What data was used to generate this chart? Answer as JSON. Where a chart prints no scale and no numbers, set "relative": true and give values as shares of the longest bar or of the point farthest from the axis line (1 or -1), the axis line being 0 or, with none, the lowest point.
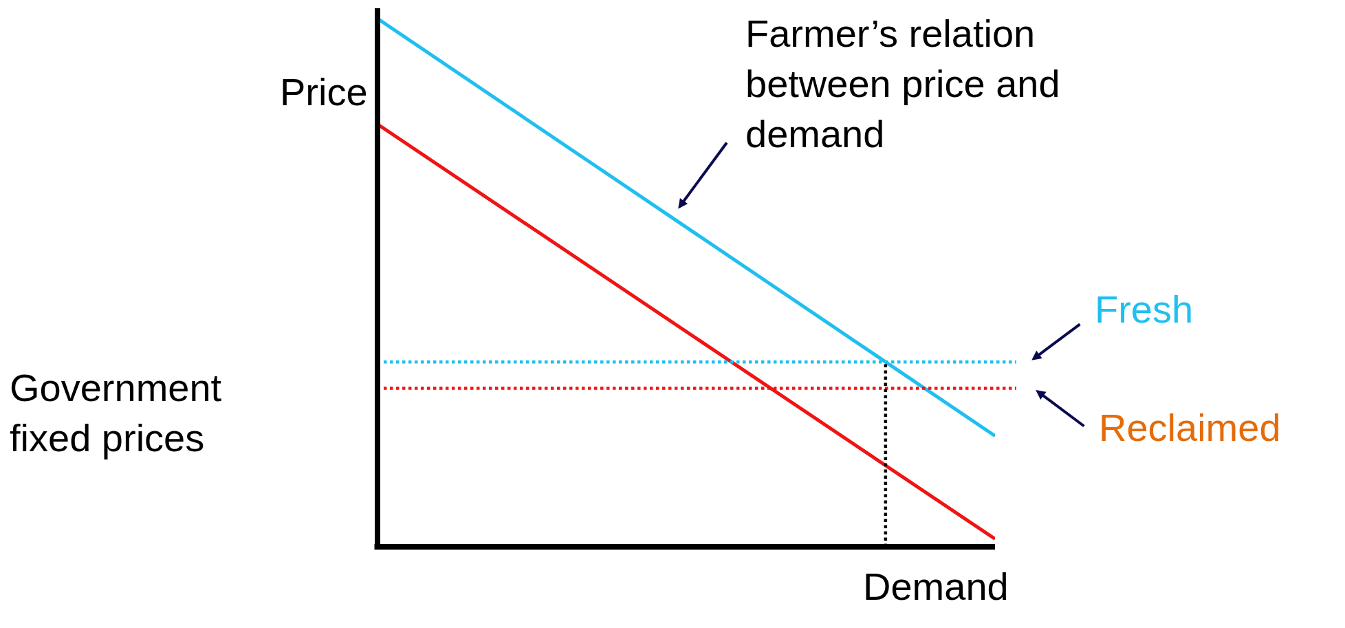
{
  "chart_data": {
    "type": "line",
    "relative": true,
    "xlabel": "Demand",
    "ylabel": "Price",
    "legend": false,
    "line_style": "solid",
    "categories": [
      null,
      null,
      null,
      null,
      null,
      null,
      null,
      null,
      null,
      null,
      null,
      null,
      null,
      null,
      null,
      null,
      null,
      null
    ],
    "series": [
      {
        "color": "#1fbff0",
        "values": [
          1.0,
          null,
          null,
          null,
          null,
          null,
          null,
          null,
          null,
          null,
          null,
          null,
          null,
          null,
          null,
          null,
          null,
          0.21
        ]
      },
      {
        "color": "#f01414",
        "values": [
          0.8,
          null,
          null,
          null,
          null,
          null,
          null,
          null,
          null,
          null,
          null,
          null,
          null,
          null,
          null,
          null,
          null,
          0.015
        ]
      }
    ],
    "ref_lines": [
      {
        "axis": "y",
        "value": 0.35,
        "label": "Fresh",
        "color": "#1fbff0",
        "line_style": "dotted"
      },
      {
        "axis": "y",
        "value": 0.3,
        "label": "Reclaimed",
        "color": "#f01414",
        "line_style": "dotted"
      }
    ],
    "annotations": [
      "Farmer’s relation\nbetween price and\ndemand",
      "Government\nfixed prices"
    ]
  }
}
